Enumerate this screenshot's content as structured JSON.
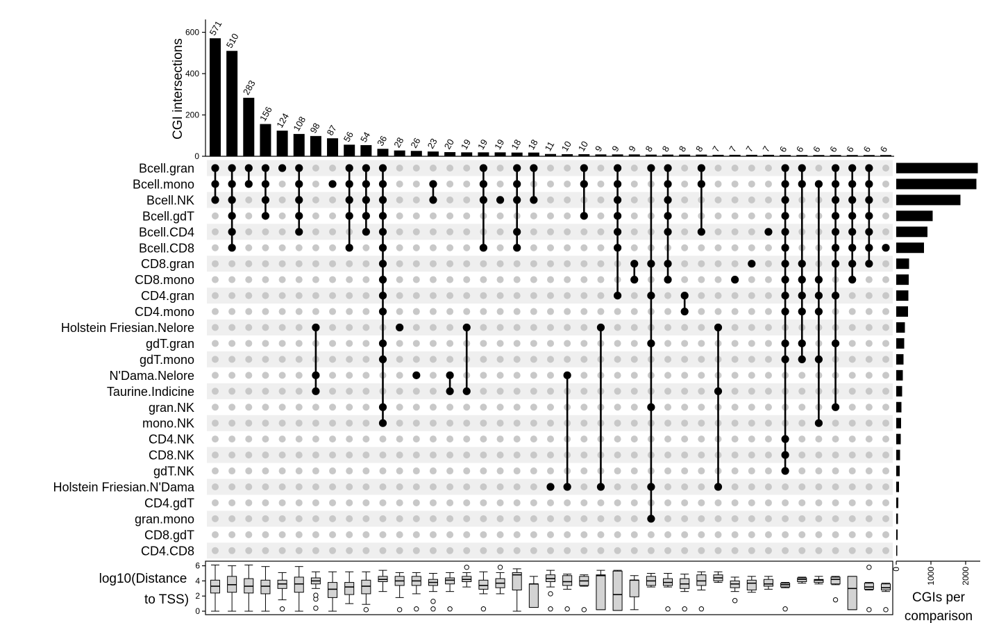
{
  "chart_data": {
    "type": "upset",
    "bar_ylabel": "CGI intersections",
    "bar_yticks": [
      0,
      200,
      400,
      600
    ],
    "bar_ylim": [
      0,
      640
    ],
    "intersection_sizes": [
      571,
      510,
      283,
      156,
      124,
      108,
      98,
      87,
      56,
      54,
      36,
      28,
      26,
      23,
      20,
      19,
      19,
      19,
      18,
      18,
      11,
      10,
      10,
      9,
      9,
      9,
      8,
      8,
      8,
      8,
      7,
      7,
      7,
      7,
      6,
      6,
      6,
      6,
      6,
      6,
      6
    ],
    "sets": [
      "Bcell.gran",
      "Bcell.mono",
      "Bcell.NK",
      "Bcell.gdT",
      "Bcell.CD4",
      "Bcell.CD8",
      "CD8.gran",
      "CD8.mono",
      "CD4.gran",
      "CD4.mono",
      "Holstein Friesian.Nelore",
      "gdT.gran",
      "gdT.mono",
      "N'Dama.Nelore",
      "Taurine.Indicine",
      "gran.NK",
      "mono.NK",
      "CD4.NK",
      "CD8.NK",
      "gdT.NK",
      "Holstein Friesian.N'Dama",
      "CD4.gdT",
      "gran.mono",
      "CD8.gdT",
      "CD4.CD8"
    ],
    "set_sizes": [
      2350,
      2310,
      1850,
      1050,
      900,
      800,
      370,
      360,
      350,
      340,
      250,
      230,
      210,
      190,
      170,
      150,
      140,
      130,
      110,
      100,
      80,
      60,
      50,
      40,
      30
    ],
    "set_size_label_line1": "CGIs per",
    "set_size_label_line2": "comparison",
    "set_size_ticks": [
      0,
      1000,
      2000
    ],
    "set_size_xlim": [
      0,
      2500
    ],
    "memberships": [
      [
        0,
        1,
        2
      ],
      [
        0,
        1,
        2,
        3,
        4,
        5
      ],
      [
        0,
        1
      ],
      [
        0,
        1,
        2,
        3
      ],
      [
        0
      ],
      [
        0,
        1,
        2,
        3,
        4
      ],
      [
        10,
        13,
        14
      ],
      [
        1
      ],
      [
        0,
        1,
        2,
        3,
        5
      ],
      [
        0,
        1,
        2,
        3,
        4
      ],
      [
        0,
        1,
        2,
        3,
        4,
        5,
        6,
        7,
        8,
        9,
        11,
        12,
        15,
        16
      ],
      [
        10
      ],
      [
        13
      ],
      [
        1,
        2
      ],
      [
        13,
        14
      ],
      [
        10,
        14
      ],
      [
        0,
        1,
        2,
        5
      ],
      [
        2
      ],
      [
        0,
        1,
        2,
        4,
        5
      ],
      [
        0,
        2
      ],
      [
        20
      ],
      [
        13,
        20
      ],
      [
        0,
        1,
        3
      ],
      [
        10,
        20
      ],
      [
        0,
        1,
        2,
        3,
        4,
        5,
        8
      ],
      [
        6,
        7
      ],
      [
        0,
        6,
        8,
        11,
        15,
        20,
        22
      ],
      [
        0,
        1,
        2,
        3,
        4,
        6,
        7
      ],
      [
        8,
        9
      ],
      [
        0,
        1,
        4
      ],
      [
        10,
        14,
        20
      ],
      [
        7
      ],
      [
        6
      ],
      [
        4
      ],
      [
        0,
        1,
        2,
        3,
        4,
        5,
        6,
        7,
        8,
        9,
        11,
        12,
        17,
        18,
        19
      ],
      [
        0,
        1,
        6,
        7,
        8,
        9,
        11,
        12
      ],
      [
        1,
        7,
        8,
        9,
        12,
        16
      ],
      [
        0,
        1,
        2,
        3,
        4,
        5,
        6,
        8,
        11,
        15
      ],
      [
        0,
        1,
        2,
        3,
        4,
        5,
        6,
        7
      ],
      [
        0,
        1,
        2,
        3,
        4,
        5,
        6
      ],
      [
        5
      ]
    ],
    "box_ylabel_line1": "log10(Distance",
    "box_ylabel_line2": "to TSS)",
    "box_yticks": [
      0,
      2,
      4,
      6
    ],
    "box_ylim": [
      0,
      6.5
    ],
    "boxplots": [
      {
        "min": 0,
        "q1": 2.4,
        "median": 3.3,
        "q3": 4.1,
        "max": 6.1,
        "outliers": []
      },
      {
        "min": 0,
        "q1": 2.5,
        "median": 3.5,
        "q3": 4.6,
        "max": 6.0,
        "outliers": []
      },
      {
        "min": 0,
        "q1": 2.4,
        "median": 3.3,
        "q3": 4.3,
        "max": 6.1,
        "outliers": []
      },
      {
        "min": 0,
        "q1": 2.3,
        "median": 3.3,
        "q3": 4.1,
        "max": 5.9,
        "outliers": []
      },
      {
        "min": 1.5,
        "q1": 3.0,
        "median": 3.6,
        "q3": 4.1,
        "max": 5.1,
        "outliers": [
          0.3
        ]
      },
      {
        "min": 0,
        "q1": 2.5,
        "median": 3.6,
        "q3": 4.5,
        "max": 5.9,
        "outliers": []
      },
      {
        "min": 3.0,
        "q1": 3.6,
        "median": 4.0,
        "q3": 4.4,
        "max": 5.2,
        "outliers": [
          0.4,
          1.6,
          2.1
        ]
      },
      {
        "min": 0,
        "q1": 1.8,
        "median": 2.9,
        "q3": 3.8,
        "max": 5.2,
        "outliers": []
      },
      {
        "min": 1.0,
        "q1": 2.2,
        "median": 3.2,
        "q3": 3.8,
        "max": 5.2,
        "outliers": []
      },
      {
        "min": 0.9,
        "q1": 2.3,
        "median": 3.3,
        "q3": 4.1,
        "max": 5.2,
        "outliers": [
          0.2
        ]
      },
      {
        "min": 2.6,
        "q1": 3.9,
        "median": 4.2,
        "q3": 4.6,
        "max": 5.4,
        "outliers": []
      },
      {
        "min": 1.8,
        "q1": 3.4,
        "median": 4.0,
        "q3": 4.6,
        "max": 5.1,
        "outliers": [
          0.2
        ]
      },
      {
        "min": 2.3,
        "q1": 3.4,
        "median": 4.0,
        "q3": 4.6,
        "max": 5.1,
        "outliers": [
          0.3
        ]
      },
      {
        "min": 2.6,
        "q1": 3.4,
        "median": 3.8,
        "q3": 4.2,
        "max": 5.0,
        "outliers": [
          0.3,
          1.3
        ]
      },
      {
        "min": 2.6,
        "q1": 3.6,
        "median": 4.1,
        "q3": 4.4,
        "max": 5.1,
        "outliers": [
          0.3
        ]
      },
      {
        "min": 3.2,
        "q1": 3.9,
        "median": 4.2,
        "q3": 4.6,
        "max": 5.1,
        "outliers": [
          5.8
        ]
      },
      {
        "min": 2.3,
        "q1": 2.9,
        "median": 3.4,
        "q3": 4.1,
        "max": 5.2,
        "outliers": [
          0.3
        ]
      },
      {
        "min": 2.3,
        "q1": 3.1,
        "median": 3.7,
        "q3": 4.3,
        "max": 5.1,
        "outliers": [
          5.8
        ]
      },
      {
        "min": 0,
        "q1": 2.8,
        "median": 4.8,
        "q3": 5.1,
        "max": 5.6,
        "outliers": []
      },
      {
        "min": 0.5,
        "q1": 0.5,
        "median": 3.6,
        "q3": 3.6,
        "max": 4.6,
        "outliers": []
      },
      {
        "min": 3.2,
        "q1": 3.9,
        "median": 4.3,
        "q3": 4.8,
        "max": 5.4,
        "outliers": [
          2.3,
          0.3
        ]
      },
      {
        "min": 2.9,
        "q1": 3.4,
        "median": 3.9,
        "q3": 4.7,
        "max": 4.9,
        "outliers": [
          0.3
        ]
      },
      {
        "min": 3.3,
        "q1": 3.4,
        "median": 4.0,
        "q3": 4.6,
        "max": 4.8,
        "outliers": [
          0.2
        ]
      },
      {
        "min": 0.2,
        "q1": 0.2,
        "median": 4.7,
        "q3": 4.8,
        "max": 5.4,
        "outliers": []
      },
      {
        "min": 0.1,
        "q1": 0.1,
        "median": 2.2,
        "q3": 5.3,
        "max": 5.4,
        "outliers": []
      },
      {
        "min": 0.2,
        "q1": 1.9,
        "median": 4.1,
        "q3": 4.1,
        "max": 4.7,
        "outliers": []
      },
      {
        "min": 3.2,
        "q1": 3.4,
        "median": 4.0,
        "q3": 4.6,
        "max": 5.0,
        "outliers": []
      },
      {
        "min": 3.2,
        "q1": 3.4,
        "median": 3.8,
        "q3": 4.3,
        "max": 5.0,
        "outliers": [
          0.3
        ]
      },
      {
        "min": 2.6,
        "q1": 3.0,
        "median": 3.6,
        "q3": 4.3,
        "max": 4.9,
        "outliers": [
          0.3
        ]
      },
      {
        "min": 2.8,
        "q1": 3.4,
        "median": 4.0,
        "q3": 4.8,
        "max": 5.2,
        "outliers": [
          0.3
        ]
      },
      {
        "min": 3.8,
        "q1": 4.0,
        "median": 4.4,
        "q3": 4.8,
        "max": 5.2,
        "outliers": []
      },
      {
        "min": 2.6,
        "q1": 3.1,
        "median": 3.6,
        "q3": 4.0,
        "max": 4.5,
        "outliers": [
          1.4
        ]
      },
      {
        "min": 2.5,
        "q1": 2.8,
        "median": 3.7,
        "q3": 4.1,
        "max": 4.6,
        "outliers": []
      },
      {
        "min": 2.9,
        "q1": 3.3,
        "median": 3.6,
        "q3": 4.2,
        "max": 4.6,
        "outliers": []
      },
      {
        "min": 3.1,
        "q1": 3.2,
        "median": 3.5,
        "q3": 3.7,
        "max": 3.8,
        "outliers": [
          0.3
        ]
      },
      {
        "min": 3.7,
        "q1": 3.9,
        "median": 4.2,
        "q3": 4.4,
        "max": 4.5,
        "outliers": []
      },
      {
        "min": 3.6,
        "q1": 3.8,
        "median": 4.1,
        "q3": 4.2,
        "max": 4.6,
        "outliers": []
      },
      {
        "min": 3.5,
        "q1": 3.6,
        "median": 4.2,
        "q3": 4.5,
        "max": 4.6,
        "outliers": [
          1.5
        ]
      },
      {
        "min": 0.2,
        "q1": 0.2,
        "median": 3.0,
        "q3": 4.6,
        "max": 4.6,
        "outliers": []
      },
      {
        "min": 2.8,
        "q1": 2.9,
        "median": 3.2,
        "q3": 3.7,
        "max": 3.8,
        "outliers": [
          0.2,
          5.8
        ]
      },
      {
        "min": 2.6,
        "q1": 2.8,
        "median": 3.1,
        "q3": 3.6,
        "max": 3.7,
        "outliers": [
          0.2
        ]
      }
    ]
  }
}
